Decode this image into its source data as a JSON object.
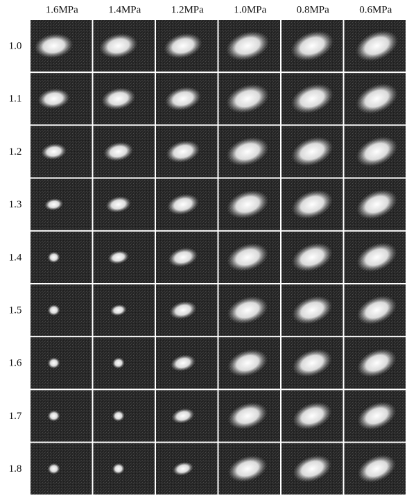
{
  "columns": [
    "1.6MPa",
    "1.4MPa",
    "1.2MPa",
    "1.0MPa",
    "0.8MPa",
    "0.6MPa"
  ],
  "rows": [
    "1.0",
    "1.1",
    "1.2",
    "1.3",
    "1.4",
    "1.5",
    "1.6",
    "1.7",
    "1.8"
  ]
}
